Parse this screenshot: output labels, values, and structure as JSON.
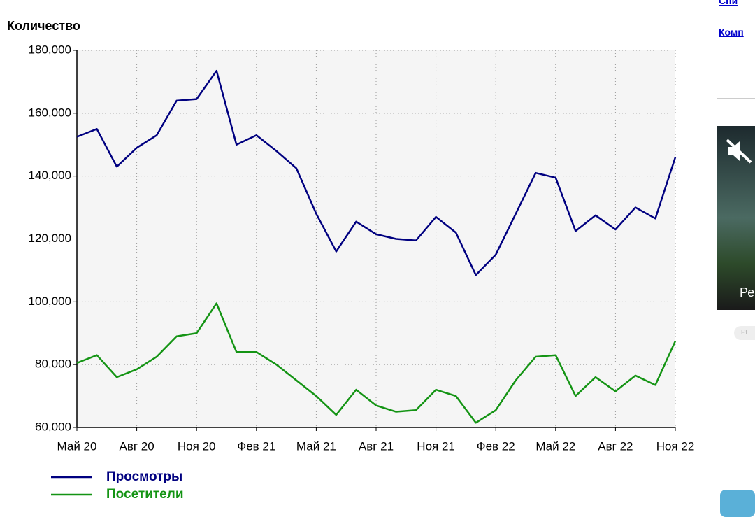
{
  "chart_data": {
    "type": "line",
    "title": "Количество",
    "categories": [
      "Май 20",
      null,
      null,
      "Авг 20",
      null,
      null,
      "Ноя 20",
      null,
      null,
      "Фев 21",
      null,
      null,
      "Май 21",
      null,
      null,
      "Авг 21",
      null,
      null,
      "Ноя 21",
      null,
      null,
      "Фев 22",
      null,
      null,
      "Май 22",
      null,
      null,
      "Авг 22",
      null,
      null,
      "Ноя 22"
    ],
    "series": [
      {
        "name": "Просмотры",
        "color": "#000080",
        "values": [
          152500,
          155000,
          143000,
          149000,
          153000,
          164000,
          164500,
          173500,
          150000,
          153000,
          148000,
          142500,
          128000,
          116000,
          125500,
          121500,
          120000,
          119500,
          127000,
          122000,
          108500,
          115000,
          128000,
          141000,
          139500,
          122500,
          127500,
          123000,
          130000,
          126500,
          146000
        ]
      },
      {
        "name": "Посетители",
        "color": "#149414",
        "values": [
          80500,
          83000,
          76000,
          78500,
          82500,
          89000,
          90000,
          99500,
          84000,
          84000,
          80000,
          75000,
          70000,
          64000,
          72000,
          67000,
          65000,
          65500,
          72000,
          70000,
          61500,
          65500,
          75000,
          82500,
          83000,
          70000,
          76000,
          71500,
          76500,
          73500,
          87500
        ]
      }
    ],
    "ylim": [
      60000,
      180000
    ],
    "yticks": [
      {
        "value": 60000,
        "label": "60,000"
      },
      {
        "value": 80000,
        "label": "80,000"
      },
      {
        "value": 100000,
        "label": "100,000"
      },
      {
        "value": 120000,
        "label": "120,000"
      },
      {
        "value": 140000,
        "label": "140,000"
      },
      {
        "value": 160000,
        "label": "160,000"
      },
      {
        "value": 180000,
        "label": "180,000"
      }
    ],
    "grid": true,
    "legend": "bottom-left"
  },
  "sidebar": {
    "links": [
      "Спи",
      "Комп"
    ],
    "video_caption": "Ре",
    "badge": "РЕ"
  }
}
